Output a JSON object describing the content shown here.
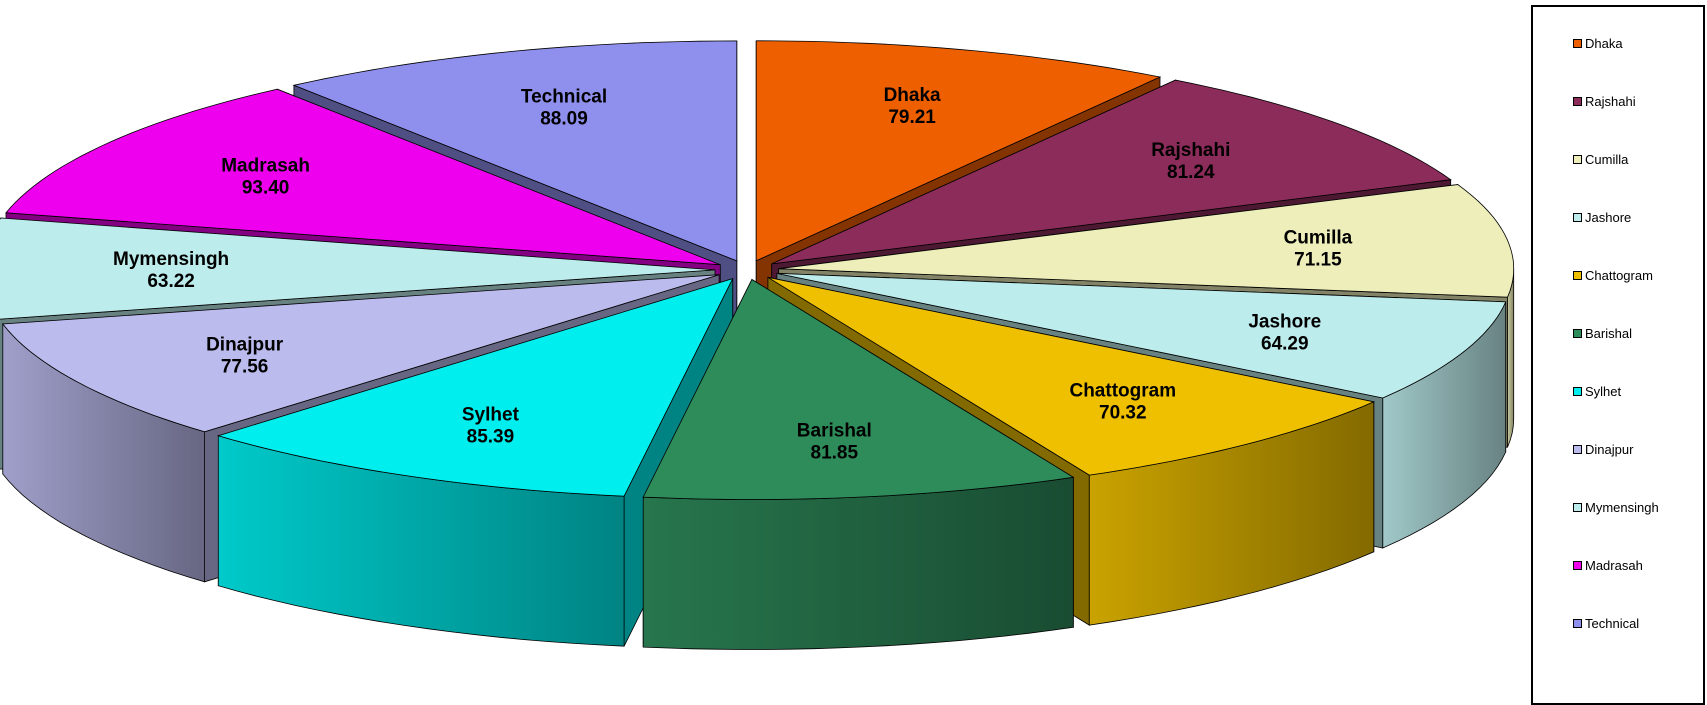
{
  "chart_data": {
    "type": "pie",
    "title": "",
    "legend_position": "right",
    "categories": [
      "Dhaka",
      "Rajshahi",
      "Cumilla",
      "Jashore",
      "Chattogram",
      "Barishal",
      "Sylhet",
      "Dinajpur",
      "Mymensingh",
      "Madrasah",
      "Technical"
    ],
    "values": [
      79.21,
      81.24,
      71.15,
      64.29,
      70.32,
      81.85,
      85.39,
      77.56,
      63.22,
      93.4,
      88.09
    ],
    "value_labels": [
      "79.21",
      "81.24",
      "71.15",
      "64.29",
      "70.32",
      "81.85",
      "85.39",
      "77.56",
      "63.22",
      "93.40",
      "88.09"
    ],
    "colors": [
      "#ee5f00",
      "#8b2c5a",
      "#eeeebb",
      "#bdecec",
      "#eec000",
      "#2e8b5a",
      "#00eeee",
      "#bbbbee",
      "#bdecec",
      "#ee00ee",
      "#8f8fee"
    ]
  }
}
